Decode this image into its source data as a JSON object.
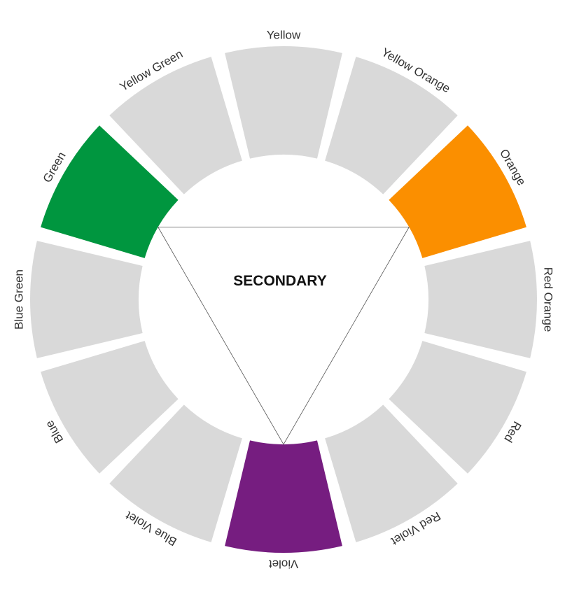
{
  "wheel": {
    "center_title": "SECONDARY",
    "segments": [
      {
        "label": "Yellow",
        "color": "#d9d9d9",
        "highlighted": false
      },
      {
        "label": "Yellow Orange",
        "color": "#d9d9d9",
        "highlighted": false
      },
      {
        "label": "Orange",
        "color": "#fb8f00",
        "highlighted": true
      },
      {
        "label": "Red Orange",
        "color": "#d9d9d9",
        "highlighted": false
      },
      {
        "label": "Red",
        "color": "#d9d9d9",
        "highlighted": false
      },
      {
        "label": "Red Violet",
        "color": "#d9d9d9",
        "highlighted": false
      },
      {
        "label": "Violet",
        "color": "#761d80",
        "highlighted": true
      },
      {
        "label": "Blue Violet",
        "color": "#d9d9d9",
        "highlighted": false
      },
      {
        "label": "Blue",
        "color": "#d9d9d9",
        "highlighted": false
      },
      {
        "label": "Blue Green",
        "color": "#d9d9d9",
        "highlighted": false
      },
      {
        "label": "Green",
        "color": "#00963f",
        "highlighted": true
      },
      {
        "label": "Yellow Green",
        "color": "#d9d9d9",
        "highlighted": false
      }
    ]
  }
}
